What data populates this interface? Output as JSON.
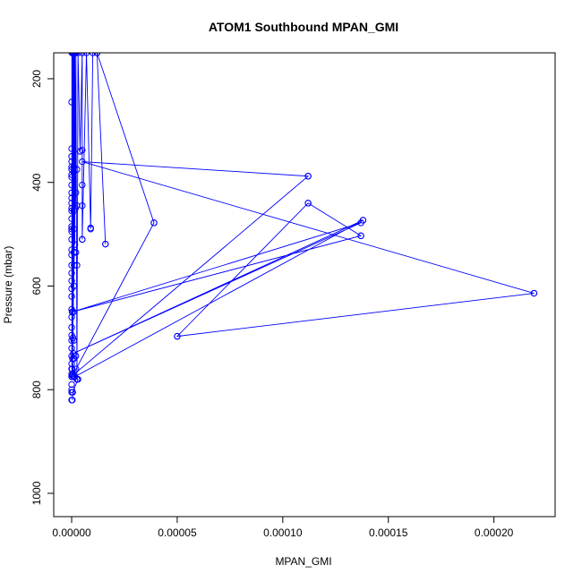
{
  "chart_data": {
    "type": "line",
    "title": "ATOM1 Southbound MPAN_GMI",
    "xlabel": "MPAN_GMI",
    "ylabel": "Pressure (mbar)",
    "xlim": [
      -8.5e-06,
      0.000229
    ],
    "ylim": [
      1045,
      150
    ],
    "y_reversed": true,
    "x_ticks": [
      0,
      5e-05,
      0.0001,
      0.00015,
      0.0002
    ],
    "x_tick_labels": [
      "0.00000",
      "0.00005",
      "0.00010",
      "0.00015",
      "0.00020"
    ],
    "y_ticks": [
      200,
      400,
      600,
      800,
      1000
    ],
    "y_tick_labels": [
      "200",
      "400",
      "600",
      "800",
      "1000"
    ],
    "grid": false,
    "legend": "none",
    "series_color": "#0000ff",
    "series": [
      {
        "points": [
          [
            1e-07,
            775
          ],
          [
            1e-07,
            150
          ],
          [
            2e-07,
            760
          ],
          [
            2e-07,
            150
          ],
          [
            4e-07,
            740
          ],
          [
            4e-07,
            150
          ],
          [
            5e-07,
            770
          ],
          [
            5e-07,
            150
          ],
          [
            6e-07,
            700
          ],
          [
            7e-07,
            150
          ],
          [
            8e-07,
            650
          ],
          [
            8e-07,
            150
          ],
          [
            1e-06,
            600
          ],
          [
            1e-06,
            150
          ],
          [
            1.2e-06,
            560
          ],
          [
            1.3e-06,
            150
          ],
          [
            1.5e-06,
            520
          ],
          [
            1.5e-06,
            150
          ],
          [
            1.8e-06,
            450
          ],
          [
            2e-06,
            150
          ],
          [
            2.5e-06,
            780
          ],
          [
            3e-06,
            150
          ],
          [
            4e-06,
            340
          ],
          [
            5e-06,
            150
          ],
          [
            5e-06,
            510
          ],
          [
            7e-06,
            150
          ],
          [
            9e-06,
            490
          ],
          [
            1e-05,
            150
          ],
          [
            1.2e-05,
            150
          ],
          [
            1.6e-05,
            519
          ],
          [
            1.2e-05,
            150
          ],
          [
            3.9e-05,
            478
          ],
          [
            4e-07,
            773
          ],
          [
            0.000112,
            388
          ],
          [
            5e-06,
            360
          ],
          [
            0.000219,
            614
          ],
          [
            5e-05,
            697
          ],
          [
            0.000112,
            440
          ],
          [
            0.000137,
            503
          ],
          [
            2e-07,
            650
          ],
          [
            0.000137,
            478
          ],
          [
            8e-07,
            730
          ],
          [
            0.000138,
            473
          ],
          [
            1.5e-06,
            775
          ],
          [
            3e-06,
            780
          ],
          [
            5e-07,
            805
          ],
          [
            3e-07,
            820
          ]
        ],
        "markers": [
          [
            0.0,
            820
          ],
          [
            0.0,
            805
          ],
          [
            0.0,
            800
          ],
          [
            0.0,
            790
          ],
          [
            0.0,
            775
          ],
          [
            0.0,
            770
          ],
          [
            0.0,
            760
          ],
          [
            0.0,
            750
          ],
          [
            0.0,
            735
          ],
          [
            0.0,
            720
          ],
          [
            0.0,
            705
          ],
          [
            0.0,
            695
          ],
          [
            0.0,
            680
          ],
          [
            0.0,
            660
          ],
          [
            0.0,
            645
          ],
          [
            0.0,
            620
          ],
          [
            0.0,
            605
          ],
          [
            0.0,
            590
          ],
          [
            0.0,
            575
          ],
          [
            0.0,
            560
          ],
          [
            0.0,
            540
          ],
          [
            0.0,
            530
          ],
          [
            0.0,
            510
          ],
          [
            0.0,
            495
          ],
          [
            0.0,
            490
          ],
          [
            0.0,
            485
          ],
          [
            0.0,
            470
          ],
          [
            0.0,
            455
          ],
          [
            0.0,
            450
          ],
          [
            0.0,
            440
          ],
          [
            0.0,
            430
          ],
          [
            0.0,
            420
          ],
          [
            0.0,
            405
          ],
          [
            0.0,
            390
          ],
          [
            0.0,
            385
          ],
          [
            0.0,
            375
          ],
          [
            0.0,
            370
          ],
          [
            0.0,
            360
          ],
          [
            0.0,
            350
          ],
          [
            0.0,
            335
          ],
          [
            0.0,
            245
          ],
          [
            1e-06,
            775
          ],
          [
            1e-06,
            740
          ],
          [
            1e-06,
            705
          ],
          [
            1e-06,
            535
          ],
          [
            1e-06,
            490
          ],
          [
            1e-06,
            455
          ],
          [
            1e-06,
            380
          ],
          [
            1e-06,
            370
          ],
          [
            2e-06,
            760
          ],
          [
            2e-06,
            735
          ],
          [
            2e-06,
            535
          ],
          [
            2e-06,
            420
          ],
          [
            2.5e-06,
            780
          ],
          [
            2.5e-06,
            560
          ],
          [
            2.5e-06,
            445
          ],
          [
            2.5e-06,
            375
          ],
          [
            4e-06,
            340
          ],
          [
            5e-06,
            510
          ],
          [
            5e-06,
            445
          ],
          [
            5e-06,
            405
          ],
          [
            5e-06,
            338
          ],
          [
            9e-06,
            488
          ],
          [
            1.6e-05,
            519
          ],
          [
            3.9e-05,
            478
          ],
          [
            0.000112,
            388
          ],
          [
            0.000112,
            440
          ],
          [
            0.000137,
            503
          ],
          [
            0.000138,
            473
          ],
          [
            0.000219,
            614
          ],
          [
            5e-05,
            697
          ]
        ]
      }
    ]
  }
}
